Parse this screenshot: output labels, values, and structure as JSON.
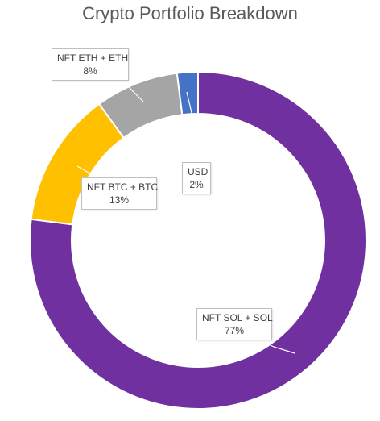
{
  "chart_data": {
    "type": "pie",
    "variant": "doughnut",
    "title": "Crypto Portfolio Breakdown",
    "slices": [
      {
        "label": "NFT SOL + SOL",
        "value": 77,
        "pct_label": "77%",
        "color": "#7030A0"
      },
      {
        "label": "NFT BTC + BTC",
        "value": 13,
        "pct_label": "13%",
        "color": "#FFC000"
      },
      {
        "label": "NFT ETH + ETH",
        "value": 8,
        "pct_label": "8%",
        "color": "#A5A5A5"
      },
      {
        "label": "USD",
        "value": 2,
        "pct_label": "2%",
        "color": "#4472C4"
      }
    ],
    "legend": "none"
  }
}
